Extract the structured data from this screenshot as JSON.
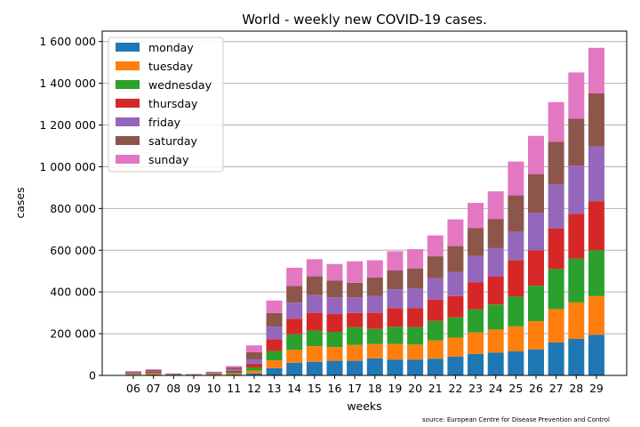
{
  "chart_data": {
    "type": "bar",
    "stacked": true,
    "title": "World - weekly new COVID-19 cases.",
    "xlabel": "weeks",
    "ylabel": "cases",
    "source": "source: European Centre for Disease Prevention and Control",
    "ylim": [
      0,
      1650000
    ],
    "yticks": [
      0,
      200000,
      400000,
      600000,
      800000,
      1000000,
      1200000,
      1400000,
      1600000
    ],
    "ytick_labels": [
      "0",
      "200 000",
      "400 000",
      "600 000",
      "800 000",
      "1 000 000",
      "1 200 000",
      "1 400 000",
      "1 600 000"
    ],
    "grid": "horizontal",
    "legend_position": "top-left",
    "categories": [
      "06",
      "07",
      "08",
      "09",
      "10",
      "11",
      "12",
      "13",
      "14",
      "15",
      "16",
      "17",
      "18",
      "19",
      "20",
      "21",
      "22",
      "23",
      "24",
      "25",
      "26",
      "27",
      "28",
      "29"
    ],
    "series": [
      {
        "name": "monday",
        "color": "#1f77b4",
        "values": [
          3000,
          4000,
          1000,
          1000,
          2000,
          4000,
          10000,
          35000,
          60000,
          65000,
          70000,
          70000,
          82000,
          76000,
          76000,
          80000,
          90000,
          103000,
          110000,
          115000,
          125000,
          158000,
          175000,
          195000
        ]
      },
      {
        "name": "tuesday",
        "color": "#ff7f0e",
        "values": [
          3000,
          4000,
          1000,
          1000,
          2000,
          5000,
          13000,
          37000,
          62000,
          75000,
          66000,
          76000,
          68000,
          75000,
          72000,
          88000,
          91000,
          103000,
          110000,
          120000,
          135000,
          160000,
          175000,
          185000
        ]
      },
      {
        "name": "wednesday",
        "color": "#2ca02c",
        "values": [
          3000,
          4000,
          2000,
          1000,
          3000,
          6000,
          15000,
          45000,
          75000,
          75000,
          73000,
          85000,
          73000,
          82000,
          84000,
          93000,
          97000,
          111000,
          120000,
          143000,
          170000,
          192000,
          210000,
          220000
        ]
      },
      {
        "name": "thursday",
        "color": "#d62728",
        "values": [
          3000,
          5000,
          1000,
          1000,
          2000,
          7000,
          18000,
          57000,
          75000,
          85000,
          85000,
          68000,
          77000,
          90000,
          90000,
          102000,
          102000,
          130000,
          135000,
          175000,
          170000,
          195000,
          215000,
          235000
        ]
      },
      {
        "name": "friday",
        "color": "#9467bd",
        "values": [
          3000,
          4000,
          2000,
          1000,
          3000,
          8000,
          20000,
          60000,
          77000,
          85000,
          80000,
          75000,
          80000,
          90000,
          96000,
          103000,
          115000,
          125000,
          135000,
          135000,
          180000,
          210000,
          230000,
          262000
        ]
      },
      {
        "name": "saturday",
        "color": "#8c564b",
        "values": [
          3000,
          5000,
          2000,
          1000,
          3000,
          8000,
          35000,
          65000,
          80000,
          90000,
          80000,
          70000,
          90000,
          90000,
          95000,
          105000,
          125000,
          135000,
          140000,
          175000,
          185000,
          205000,
          225000,
          255000
        ]
      },
      {
        "name": "sunday",
        "color": "#e377c2",
        "values": [
          3000,
          4000,
          1000,
          1000,
          3000,
          7000,
          33000,
          60000,
          87000,
          82000,
          80000,
          103000,
          82000,
          92000,
          92000,
          100000,
          128000,
          120000,
          132000,
          162000,
          183000,
          190000,
          222000,
          218000
        ]
      }
    ]
  }
}
